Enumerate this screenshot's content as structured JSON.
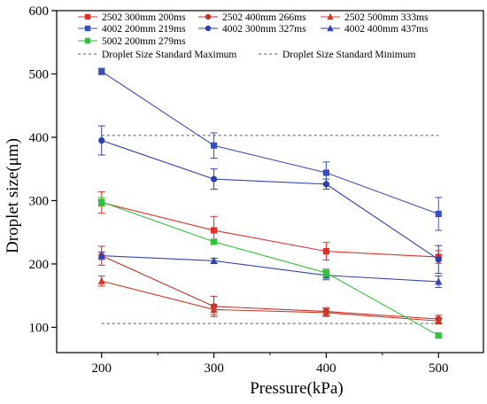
{
  "chart_data": {
    "type": "line",
    "title": "",
    "xlabel": "Pressure(kPa)",
    "ylabel": "Droplet size(μm)",
    "x": [
      200,
      300,
      400,
      500
    ],
    "xlim": [
      160,
      540
    ],
    "ylim": [
      60,
      600
    ],
    "xticks": [
      200,
      300,
      400,
      500
    ],
    "yticks": [
      100,
      200,
      300,
      400,
      500,
      600
    ],
    "grid": false,
    "legend": "top-left",
    "series": [
      {
        "name": "2502 300mm 200ms",
        "color": "#e0302a",
        "marker": "square",
        "values": [
          297,
          253,
          220,
          211
        ],
        "errors": [
          17,
          22,
          14,
          10
        ]
      },
      {
        "name": "2502 400mm 266ms",
        "color": "#c0302a",
        "marker": "circle",
        "values": [
          213,
          133,
          125,
          113
        ],
        "errors": [
          15,
          16,
          6,
          6
        ]
      },
      {
        "name": "2502 500mm 333ms",
        "color": "#d03a24",
        "marker": "triangle",
        "values": [
          173,
          128,
          123,
          110
        ],
        "errors": [
          8,
          8,
          6,
          5
        ]
      },
      {
        "name": "4002 200mm 219ms",
        "color": "#3a4fbe",
        "marker": "square",
        "values": [
          504,
          387,
          344,
          279
        ],
        "errors": [
          5,
          20,
          17,
          26
        ]
      },
      {
        "name": "4002 300mm 327ms",
        "color": "#2a40b0",
        "marker": "circle",
        "values": [
          395,
          334,
          326,
          207
        ],
        "errors": [
          23,
          16,
          8,
          22
        ]
      },
      {
        "name": "4002 400mm 437ms",
        "color": "#3044b4",
        "marker": "triangle",
        "values": [
          213,
          205,
          182,
          172
        ],
        "errors": [
          6,
          4,
          7,
          9
        ]
      },
      {
        "name": "5002 200mm 279ms",
        "color": "#30c23a",
        "marker": "square",
        "values": [
          298,
          235,
          186,
          87
        ],
        "errors": [
          7,
          4,
          6,
          3
        ]
      }
    ],
    "reference_lines": [
      {
        "name": "Droplet Size Standard Maximum",
        "value": 403,
        "color": "#555555"
      },
      {
        "name": "Droplet Size Standard Minimum",
        "value": 106,
        "color": "#555555"
      }
    ]
  }
}
